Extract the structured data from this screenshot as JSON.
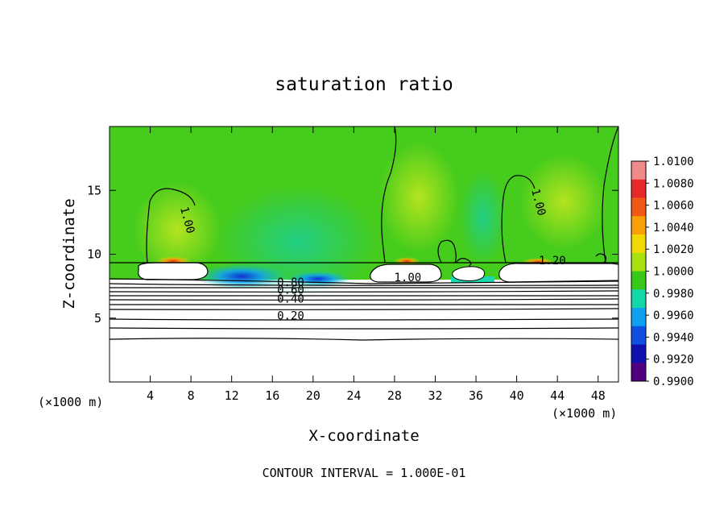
{
  "chart_data": {
    "type": "heatmap",
    "title": "saturation ratio",
    "xlabel": "X-coordinate",
    "ylabel": "Z-coordinate",
    "x_unit_left": "(×1000 m)",
    "x_unit_right": "(×1000 m)",
    "xlim": [
      0,
      50
    ],
    "ylim": [
      0,
      20
    ],
    "xticks": [
      4,
      8,
      12,
      16,
      20,
      24,
      28,
      32,
      36,
      40,
      44,
      48
    ],
    "xtick_labels": [
      "4",
      "8",
      "12",
      "16",
      "20",
      "24",
      "28",
      "32",
      "36",
      "40",
      "44",
      "48"
    ],
    "yticks": [
      5,
      10,
      15
    ],
    "ytick_labels": [
      "5",
      "10",
      "15"
    ],
    "colorbar_labels": [
      "1.0100",
      "1.0080",
      "1.0060",
      "1.0040",
      "1.0020",
      "1.0000",
      "0.9980",
      "0.9960",
      "0.9940",
      "0.9920",
      "0.9900"
    ],
    "colorbar_colors": [
      "#f08a8a",
      "#e8282a",
      "#f05a14",
      "#f8a008",
      "#f0d800",
      "#a8e010",
      "#38c818",
      "#10d8a8",
      "#10a0f0",
      "#1050e0",
      "#1010b0",
      "#500080"
    ],
    "contour_labels": [
      {
        "text": "1.00",
        "x": 7.3,
        "z": 12.6,
        "angle": 75
      },
      {
        "text": "1.00",
        "x": 41.8,
        "z": 14.0,
        "angle": 75
      },
      {
        "text": "1.20",
        "x": 43.5,
        "z": 9.2,
        "angle": 0
      },
      {
        "text": "1.00",
        "x": 29.3,
        "z": 7.9,
        "angle": 0
      },
      {
        "text": "0.80",
        "x": 17.8,
        "z": 7.5,
        "angle": 0
      },
      {
        "text": "0.60",
        "x": 17.8,
        "z": 6.9,
        "angle": 0
      },
      {
        "text": "0.40",
        "x": 17.8,
        "z": 6.2,
        "angle": 0
      },
      {
        "text": "0.20",
        "x": 17.8,
        "z": 4.9,
        "angle": 0
      }
    ],
    "footer": "CONTOUR INTERVAL = 1.000E-01"
  }
}
